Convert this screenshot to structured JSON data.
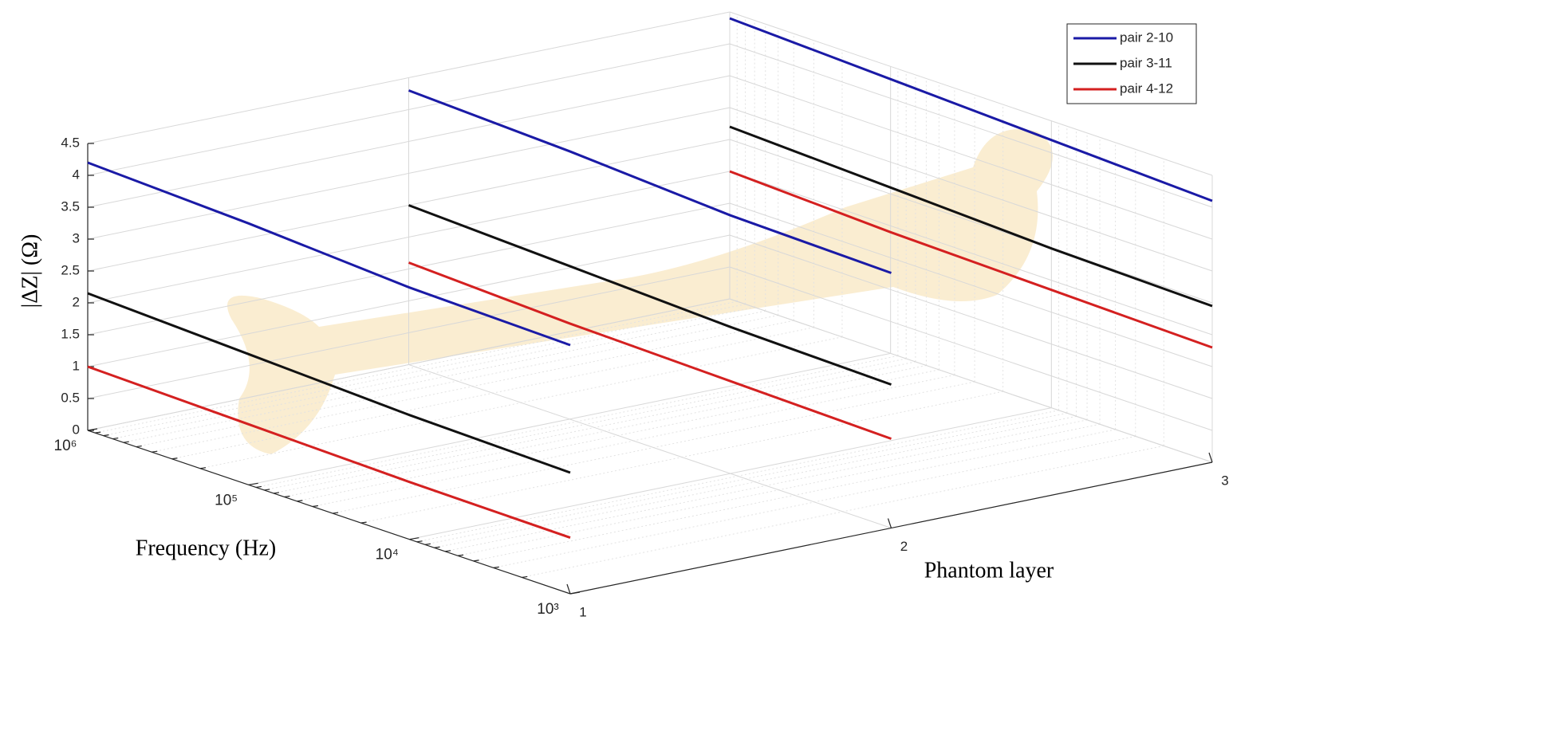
{
  "chart_data": {
    "type": "line3d",
    "x_label": "Frequency (Hz)",
    "y_label": "Phantom layer",
    "z_label": "|ΔZ|  (Ω)",
    "x": [
      1000,
      10000,
      100000,
      1000000
    ],
    "layers": [
      1,
      2,
      3
    ],
    "xlim": [
      1000,
      1000000
    ],
    "xlog": true,
    "xticks": [
      {
        "value": 1000,
        "label": "10³"
      },
      {
        "value": 10000,
        "label": "10⁴"
      },
      {
        "value": 100000,
        "label": "10⁵"
      },
      {
        "value": 1000000,
        "label": "10⁶"
      }
    ],
    "ylim": [
      1,
      3
    ],
    "yticks": [
      1,
      2,
      3
    ],
    "zlim": [
      0,
      4.5
    ],
    "zticks": [
      0,
      0.5,
      1,
      1.5,
      2,
      2.5,
      3,
      3.5,
      4,
      4.5
    ],
    "grid": true,
    "legend": "top-right",
    "series": [
      {
        "name": "pair 2-10",
        "color": "#1a1aa6",
        "values": [
          [
            3.9,
            3.95,
            4.1,
            4.2
          ],
          [
            4.0,
            4.05,
            4.2,
            4.3
          ],
          [
            4.1,
            4.2,
            4.3,
            4.4
          ]
        ]
      },
      {
        "name": "pair 3-11",
        "color": "#111111",
        "values": [
          [
            1.9,
            1.95,
            2.05,
            2.15
          ],
          [
            2.25,
            2.3,
            2.4,
            2.5
          ],
          [
            2.45,
            2.5,
            2.6,
            2.7
          ]
        ]
      },
      {
        "name": "pair 4-12",
        "color": "#d42020",
        "values": [
          [
            0.88,
            0.9,
            0.95,
            1.0
          ],
          [
            1.4,
            1.45,
            1.5,
            1.6
          ],
          [
            1.8,
            1.85,
            1.9,
            2.0
          ]
        ]
      }
    ]
  }
}
